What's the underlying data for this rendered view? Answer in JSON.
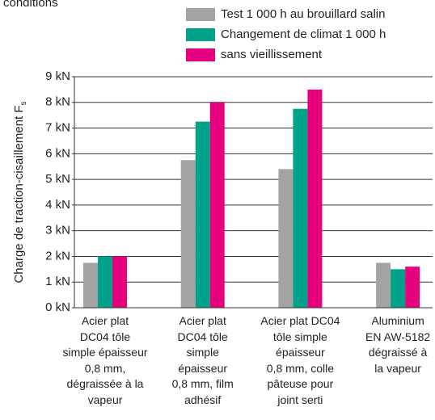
{
  "chart_data": {
    "type": "bar",
    "title": "conditions",
    "y_label": "Charge de traction-cisaillement F",
    "y_label_subscript": "s",
    "categories": [
      "Acier plat\nDC04 tôle\nsimple épaisseur\n0,8 mm,\ndégraissée à la\nvapeur",
      "Acier plat\nDC04 tôle\nsimple\népaisseur\n0,8 mm, film\nadhésif",
      "Acier plat DC04\ntôle simple\népaisseur\n0,8 mm, colle\npâteuse pour\njoint serti",
      "Aluminium\nEN AW-5182\ndégraissé à\nla vapeur"
    ],
    "series": [
      {
        "name": "Test 1 000 h au brouillard salin",
        "color": "#a3a3a2",
        "values": [
          1.75,
          5.75,
          5.4,
          1.75
        ]
      },
      {
        "name": "Changement de climat 1 000 h",
        "color": "#00a28a",
        "values": [
          2.0,
          7.25,
          7.75,
          1.5
        ]
      },
      {
        "name": "sans vieillissement",
        "color": "#e6007e",
        "values": [
          2.0,
          8.0,
          8.5,
          1.6
        ]
      }
    ],
    "ylim": [
      0,
      9
    ],
    "yticks": [
      {
        "value": 0,
        "label": "0 kN"
      },
      {
        "value": 1,
        "label": "1 kN"
      },
      {
        "value": 2,
        "label": "2 kN"
      },
      {
        "value": 3,
        "label": "3 kN"
      },
      {
        "value": 4,
        "label": "4 kN"
      },
      {
        "value": 5,
        "label": "5 kN"
      },
      {
        "value": 6,
        "label": "6 kN"
      },
      {
        "value": 7,
        "label": "7 kN"
      },
      {
        "value": 8,
        "label": "8 kN"
      },
      {
        "value": 9,
        "label": "9 kN"
      }
    ],
    "grid": true,
    "legend": "top-right"
  }
}
